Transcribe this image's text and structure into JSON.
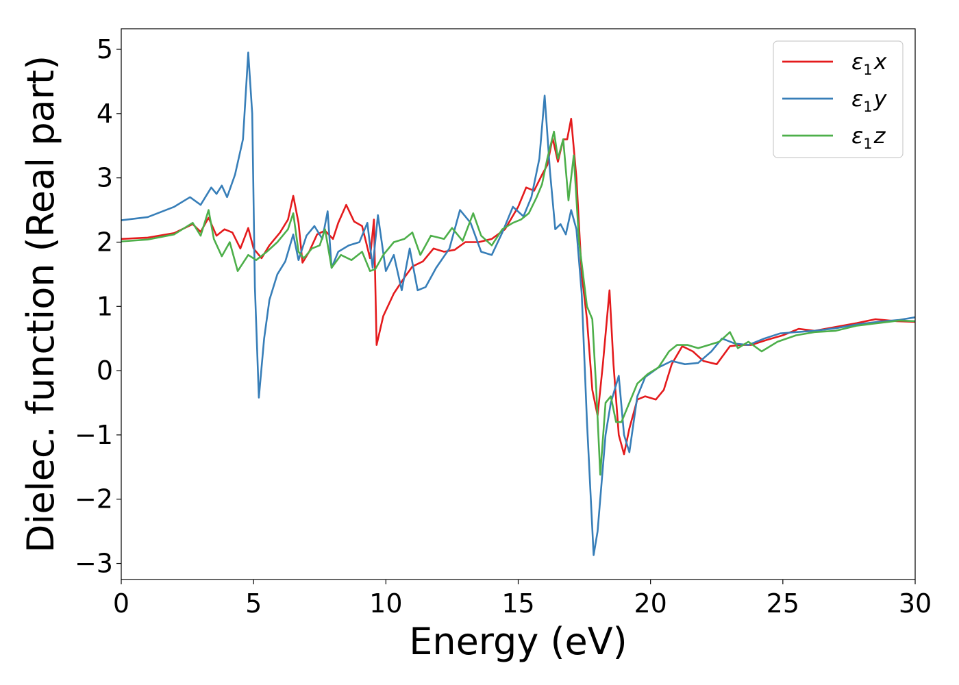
{
  "chart_data": {
    "type": "line",
    "xlabel": "Energy (eV)",
    "ylabel": "Dielec. function (Real part)",
    "xlim": [
      0,
      30
    ],
    "ylim": [
      -3.25,
      5.32
    ],
    "xticks": [
      "0",
      "5",
      "10",
      "15",
      "20",
      "25",
      "30"
    ],
    "yticks": [
      "−3",
      "−2",
      "−1",
      "0",
      "1",
      "2",
      "3",
      "4",
      "5"
    ],
    "legend_position": "top-right",
    "grid": false,
    "series": [
      {
        "name": "ε1x",
        "legend_main": "ε",
        "legend_sub": "1",
        "legend_tail": "x",
        "color": "#e41a1c",
        "points": [
          [
            0,
            2.05
          ],
          [
            1,
            2.07
          ],
          [
            2,
            2.14
          ],
          [
            2.7,
            2.28
          ],
          [
            3.0,
            2.16
          ],
          [
            3.3,
            2.38
          ],
          [
            3.6,
            2.1
          ],
          [
            3.9,
            2.2
          ],
          [
            4.2,
            2.15
          ],
          [
            4.5,
            1.9
          ],
          [
            4.8,
            2.22
          ],
          [
            5.0,
            1.9
          ],
          [
            5.3,
            1.75
          ],
          [
            5.6,
            1.95
          ],
          [
            6.0,
            2.15
          ],
          [
            6.3,
            2.35
          ],
          [
            6.5,
            2.72
          ],
          [
            6.7,
            2.3
          ],
          [
            6.85,
            1.68
          ],
          [
            7.1,
            1.85
          ],
          [
            7.4,
            2.12
          ],
          [
            7.7,
            2.18
          ],
          [
            8.0,
            2.05
          ],
          [
            8.2,
            2.3
          ],
          [
            8.5,
            2.58
          ],
          [
            8.8,
            2.32
          ],
          [
            9.1,
            2.25
          ],
          [
            9.4,
            1.75
          ],
          [
            9.55,
            2.35
          ],
          [
            9.65,
            0.4
          ],
          [
            9.9,
            0.85
          ],
          [
            10.3,
            1.2
          ],
          [
            10.7,
            1.45
          ],
          [
            11.0,
            1.62
          ],
          [
            11.4,
            1.7
          ],
          [
            11.8,
            1.9
          ],
          [
            12.2,
            1.85
          ],
          [
            12.6,
            1.88
          ],
          [
            13.0,
            2.0
          ],
          [
            13.5,
            2.0
          ],
          [
            14.0,
            2.05
          ],
          [
            14.5,
            2.2
          ],
          [
            15.0,
            2.55
          ],
          [
            15.3,
            2.85
          ],
          [
            15.6,
            2.8
          ],
          [
            15.9,
            3.05
          ],
          [
            16.1,
            3.2
          ],
          [
            16.3,
            3.62
          ],
          [
            16.5,
            3.25
          ],
          [
            16.7,
            3.6
          ],
          [
            16.85,
            3.6
          ],
          [
            17.0,
            3.92
          ],
          [
            17.2,
            3.0
          ],
          [
            17.4,
            1.5
          ],
          [
            17.6,
            0.8
          ],
          [
            17.8,
            -0.3
          ],
          [
            18.0,
            -0.7
          ],
          [
            18.2,
            0.1
          ],
          [
            18.45,
            1.25
          ],
          [
            18.6,
            0.1
          ],
          [
            18.8,
            -1.0
          ],
          [
            19.0,
            -1.3
          ],
          [
            19.2,
            -0.9
          ],
          [
            19.5,
            -0.45
          ],
          [
            19.8,
            -0.4
          ],
          [
            20.2,
            -0.45
          ],
          [
            20.5,
            -0.3
          ],
          [
            20.8,
            0.1
          ],
          [
            21.2,
            0.38
          ],
          [
            21.6,
            0.3
          ],
          [
            22.0,
            0.15
          ],
          [
            22.5,
            0.1
          ],
          [
            23.0,
            0.38
          ],
          [
            23.4,
            0.4
          ],
          [
            23.8,
            0.4
          ],
          [
            24.4,
            0.48
          ],
          [
            25.0,
            0.55
          ],
          [
            25.6,
            0.65
          ],
          [
            26.2,
            0.62
          ],
          [
            27.0,
            0.68
          ],
          [
            27.8,
            0.74
          ],
          [
            28.5,
            0.8
          ],
          [
            29.3,
            0.77
          ],
          [
            30,
            0.76
          ]
        ]
      },
      {
        "name": "ε1y",
        "legend_main": "ε",
        "legend_sub": "1",
        "legend_tail": "y",
        "color": "#377eb8",
        "points": [
          [
            0,
            2.34
          ],
          [
            1,
            2.39
          ],
          [
            2,
            2.55
          ],
          [
            2.6,
            2.7
          ],
          [
            3.0,
            2.58
          ],
          [
            3.4,
            2.85
          ],
          [
            3.6,
            2.75
          ],
          [
            3.8,
            2.88
          ],
          [
            4.0,
            2.7
          ],
          [
            4.3,
            3.05
          ],
          [
            4.6,
            3.6
          ],
          [
            4.8,
            4.95
          ],
          [
            4.95,
            4.0
          ],
          [
            5.05,
            1.3
          ],
          [
            5.2,
            -0.42
          ],
          [
            5.4,
            0.5
          ],
          [
            5.6,
            1.1
          ],
          [
            5.9,
            1.5
          ],
          [
            6.2,
            1.7
          ],
          [
            6.5,
            2.12
          ],
          [
            6.7,
            1.72
          ],
          [
            7.0,
            2.1
          ],
          [
            7.3,
            2.25
          ],
          [
            7.6,
            2.05
          ],
          [
            7.8,
            2.48
          ],
          [
            7.95,
            1.6
          ],
          [
            8.2,
            1.85
          ],
          [
            8.6,
            1.95
          ],
          [
            9.0,
            2.0
          ],
          [
            9.3,
            2.3
          ],
          [
            9.5,
            1.6
          ],
          [
            9.7,
            2.42
          ],
          [
            10.0,
            1.55
          ],
          [
            10.3,
            1.8
          ],
          [
            10.6,
            1.25
          ],
          [
            10.9,
            1.9
          ],
          [
            11.2,
            1.25
          ],
          [
            11.5,
            1.3
          ],
          [
            11.9,
            1.6
          ],
          [
            12.4,
            1.9
          ],
          [
            12.8,
            2.5
          ],
          [
            13.2,
            2.3
          ],
          [
            13.6,
            1.85
          ],
          [
            14.0,
            1.8
          ],
          [
            14.4,
            2.15
          ],
          [
            14.8,
            2.55
          ],
          [
            15.2,
            2.4
          ],
          [
            15.5,
            2.7
          ],
          [
            15.8,
            3.3
          ],
          [
            16.0,
            4.28
          ],
          [
            16.2,
            3.1
          ],
          [
            16.4,
            2.2
          ],
          [
            16.6,
            2.28
          ],
          [
            16.8,
            2.12
          ],
          [
            17.0,
            2.5
          ],
          [
            17.2,
            2.2
          ],
          [
            17.4,
            1.2
          ],
          [
            17.6,
            -0.8
          ],
          [
            17.85,
            -2.87
          ],
          [
            18.0,
            -2.5
          ],
          [
            18.3,
            -1.0
          ],
          [
            18.5,
            -0.5
          ],
          [
            18.8,
            -0.08
          ],
          [
            19.0,
            -1.0
          ],
          [
            19.2,
            -1.27
          ],
          [
            19.5,
            -0.4
          ],
          [
            19.8,
            -0.1
          ],
          [
            20.3,
            0.05
          ],
          [
            20.8,
            0.15
          ],
          [
            21.3,
            0.1
          ],
          [
            21.8,
            0.12
          ],
          [
            22.3,
            0.3
          ],
          [
            22.7,
            0.5
          ],
          [
            23.2,
            0.42
          ],
          [
            23.7,
            0.4
          ],
          [
            24.3,
            0.5
          ],
          [
            24.9,
            0.58
          ],
          [
            25.5,
            0.6
          ],
          [
            26.2,
            0.62
          ],
          [
            27.0,
            0.66
          ],
          [
            27.8,
            0.72
          ],
          [
            28.6,
            0.76
          ],
          [
            29.4,
            0.79
          ],
          [
            30,
            0.83
          ]
        ]
      },
      {
        "name": "ε1z",
        "legend_main": "ε",
        "legend_sub": "1",
        "legend_tail": "z",
        "color": "#4daf4a",
        "points": [
          [
            0,
            2.01
          ],
          [
            1,
            2.04
          ],
          [
            2,
            2.12
          ],
          [
            2.7,
            2.3
          ],
          [
            3.0,
            2.1
          ],
          [
            3.3,
            2.5
          ],
          [
            3.5,
            2.05
          ],
          [
            3.8,
            1.78
          ],
          [
            4.1,
            2.0
          ],
          [
            4.4,
            1.55
          ],
          [
            4.8,
            1.8
          ],
          [
            5.1,
            1.72
          ],
          [
            5.5,
            1.85
          ],
          [
            5.9,
            2.0
          ],
          [
            6.3,
            2.2
          ],
          [
            6.5,
            2.45
          ],
          [
            6.7,
            1.85
          ],
          [
            6.9,
            1.75
          ],
          [
            7.2,
            1.9
          ],
          [
            7.5,
            1.95
          ],
          [
            7.7,
            2.2
          ],
          [
            7.95,
            1.6
          ],
          [
            8.3,
            1.8
          ],
          [
            8.7,
            1.72
          ],
          [
            9.1,
            1.85
          ],
          [
            9.4,
            1.55
          ],
          [
            9.6,
            1.58
          ],
          [
            9.9,
            1.8
          ],
          [
            10.3,
            2.0
          ],
          [
            10.7,
            2.05
          ],
          [
            11.0,
            2.15
          ],
          [
            11.3,
            1.8
          ],
          [
            11.7,
            2.1
          ],
          [
            12.2,
            2.05
          ],
          [
            12.5,
            2.22
          ],
          [
            12.9,
            2.02
          ],
          [
            13.3,
            2.45
          ],
          [
            13.6,
            2.1
          ],
          [
            14.0,
            1.95
          ],
          [
            14.4,
            2.2
          ],
          [
            14.8,
            2.3
          ],
          [
            15.1,
            2.35
          ],
          [
            15.4,
            2.45
          ],
          [
            15.7,
            2.7
          ],
          [
            15.9,
            2.9
          ],
          [
            16.1,
            3.3
          ],
          [
            16.35,
            3.72
          ],
          [
            16.5,
            3.3
          ],
          [
            16.7,
            3.6
          ],
          [
            16.9,
            2.65
          ],
          [
            17.1,
            3.35
          ],
          [
            17.3,
            2.0
          ],
          [
            17.6,
            1.0
          ],
          [
            17.8,
            0.8
          ],
          [
            17.95,
            -0.3
          ],
          [
            18.1,
            -1.62
          ],
          [
            18.3,
            -0.5
          ],
          [
            18.5,
            -0.4
          ],
          [
            18.7,
            -0.8
          ],
          [
            18.9,
            -0.8
          ],
          [
            19.1,
            -0.6
          ],
          [
            19.5,
            -0.2
          ],
          [
            19.9,
            -0.05
          ],
          [
            20.3,
            0.05
          ],
          [
            20.7,
            0.3
          ],
          [
            21.0,
            0.4
          ],
          [
            21.4,
            0.4
          ],
          [
            21.8,
            0.35
          ],
          [
            22.2,
            0.4
          ],
          [
            22.6,
            0.45
          ],
          [
            23.0,
            0.6
          ],
          [
            23.3,
            0.35
          ],
          [
            23.7,
            0.45
          ],
          [
            24.2,
            0.3
          ],
          [
            24.8,
            0.45
          ],
          [
            25.5,
            0.55
          ],
          [
            26.2,
            0.6
          ],
          [
            27.0,
            0.62
          ],
          [
            27.8,
            0.7
          ],
          [
            28.6,
            0.74
          ],
          [
            29.4,
            0.78
          ],
          [
            30,
            0.77
          ]
        ]
      }
    ]
  }
}
